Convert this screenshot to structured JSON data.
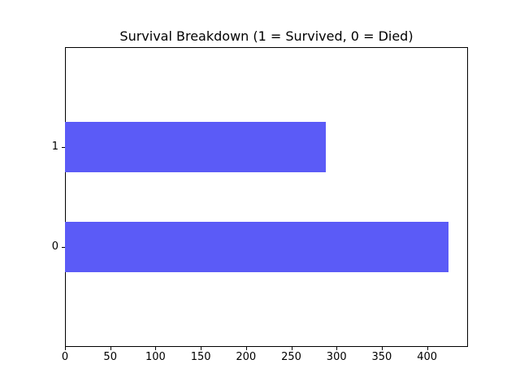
{
  "chart_data": {
    "type": "bar",
    "orientation": "horizontal",
    "title": "Survival Breakdown (1 = Survived, 0 = Died)",
    "categories": [
      "1",
      "0"
    ],
    "values": [
      288,
      424
    ],
    "y_positions": [
      1,
      0
    ],
    "x_ticks": [
      0,
      50,
      100,
      150,
      200,
      250,
      300,
      350,
      400
    ],
    "xlim": [
      0,
      445.2
    ],
    "ylim": [
      -1,
      2
    ],
    "bar_height_units": 0.5,
    "bar_color": "#5b5bf7",
    "spine_color": "#000000",
    "background_color": "#ffffff",
    "grid": false,
    "legend": "none",
    "xlabel": "",
    "ylabel": ""
  }
}
